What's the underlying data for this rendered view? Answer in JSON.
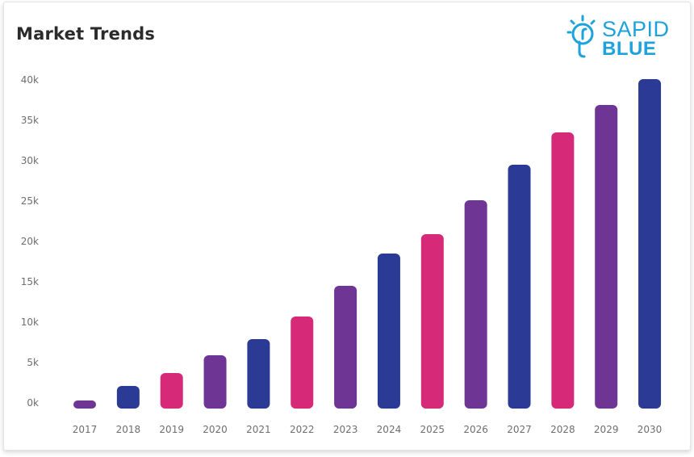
{
  "header": {
    "title": "Market Trends"
  },
  "logo": {
    "line1": "SAPID",
    "line2": "BLUE",
    "color": "#1da2dc",
    "icon": "lightbulb-icon"
  },
  "chart_data": {
    "type": "bar",
    "title": "Market Trends",
    "xlabel": "",
    "ylabel": "",
    "categories": [
      "2017",
      "2018",
      "2019",
      "2020",
      "2021",
      "2022",
      "2023",
      "2024",
      "2025",
      "2026",
      "2027",
      "2028",
      "2029",
      "2030"
    ],
    "values": [
      1000,
      2800,
      4400,
      6600,
      8600,
      11400,
      15200,
      19200,
      21600,
      25800,
      30200,
      34200,
      37600,
      40800
    ],
    "colors": [
      "#6f3594",
      "#2b3a94",
      "#d62a78",
      "#6f3594",
      "#2b3a94",
      "#d62a78",
      "#6f3594",
      "#2b3a94",
      "#d62a78",
      "#6f3594",
      "#2b3a94",
      "#d62a78",
      "#6f3594",
      "#2b3a94"
    ],
    "y_ticks": [
      0,
      5000,
      10000,
      15000,
      20000,
      25000,
      30000,
      35000,
      40000
    ],
    "y_tick_labels": [
      "0k",
      "5k",
      "10k",
      "15k",
      "20k",
      "25k",
      "30k",
      "35k",
      "40k"
    ],
    "ylim": [
      0,
      40000
    ],
    "grid": false,
    "legend": "none"
  }
}
